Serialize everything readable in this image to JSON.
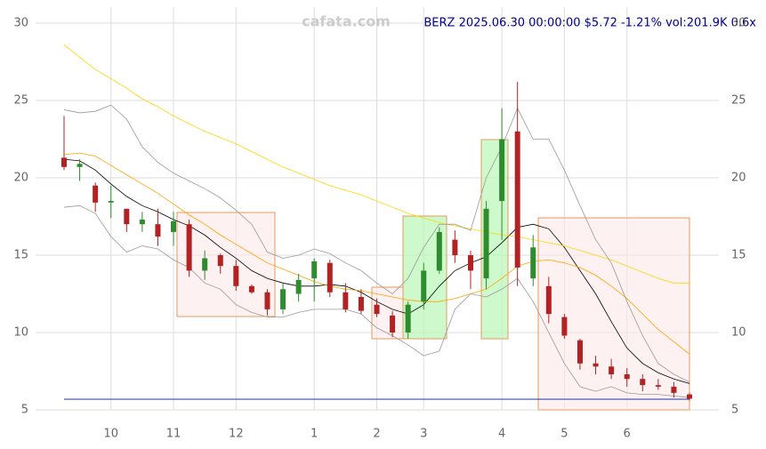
{
  "chart_data": {
    "type": "candlestick",
    "title": "BERZ 2025.06.30 00:00:00 $5.72 -1.21% vol:201.9K 0.6x",
    "watermark": "cafata.com",
    "categories": [
      null,
      null,
      null,
      "10",
      null,
      null,
      null,
      "11",
      null,
      null,
      null,
      "12",
      null,
      null,
      null,
      null,
      "1",
      null,
      null,
      null,
      "2",
      null,
      null,
      "3",
      null,
      null,
      null,
      null,
      "4",
      null,
      null,
      null,
      "5",
      null,
      null,
      null,
      "6",
      null,
      null,
      null,
      null
    ],
    "open": [
      21.3,
      20.7,
      19.5,
      18.4,
      18,
      17,
      17,
      16.5,
      17,
      14,
      15,
      14.3,
      13,
      12.6,
      11.5,
      12.5,
      13.5,
      14.5,
      12.6,
      12.3,
      11.8,
      11.1,
      10,
      12,
      14,
      16,
      15,
      13.5,
      18.5,
      23,
      13.5,
      13,
      11,
      9.5,
      8,
      7.8,
      7.3,
      7,
      6.6,
      6.5,
      6
    ],
    "high": [
      24,
      21.2,
      19.7,
      19.5,
      18,
      17.8,
      18,
      17.8,
      17.3,
      15.3,
      15.1,
      14.7,
      13.1,
      12.8,
      13.2,
      13.8,
      14.8,
      14.7,
      13.2,
      12.8,
      12.2,
      11.4,
      12,
      14.5,
      16.8,
      16.6,
      15.3,
      18.5,
      24.5,
      26.2,
      16.3,
      13.6,
      11.2,
      9.6,
      8.5,
      8.3,
      7.7,
      7.3,
      7,
      6.8,
      6.1
    ],
    "low": [
      20.5,
      19.8,
      17.8,
      17.4,
      16.5,
      16.5,
      15.6,
      15.6,
      13.6,
      13.4,
      13.8,
      12.7,
      12.5,
      11.1,
      11.2,
      12,
      12,
      12.3,
      11.3,
      11.2,
      11,
      9.7,
      9.6,
      11.5,
      13.8,
      14.5,
      12.8,
      12.8,
      16,
      13,
      13,
      10.6,
      9.6,
      7.6,
      7.3,
      7,
      6.5,
      6.2,
      6.3,
      5.8,
      5.6
    ],
    "close": [
      20.7,
      20.9,
      18.4,
      18.5,
      17,
      17.3,
      16.2,
      17.2,
      14,
      14.8,
      14.3,
      13,
      12.6,
      11.5,
      12.8,
      13.4,
      14.6,
      12.6,
      11.5,
      11.4,
      11.2,
      10,
      11.8,
      14,
      16.5,
      15,
      14,
      18,
      22.5,
      14.2,
      15.5,
      11.2,
      9.8,
      8,
      7.8,
      7.3,
      7,
      6.6,
      6.5,
      6.1,
      5.72
    ],
    "up_color": "#2e8b2e",
    "down_color": "#b22222",
    "lines": [
      {
        "color": "#000000",
        "values": [
          21.2,
          21.1,
          20.5,
          19.6,
          18.8,
          18.2,
          17.8,
          17.3,
          16.9,
          16.3,
          15.5,
          14.8,
          14,
          13.5,
          13.2,
          13,
          13,
          13.1,
          13,
          12.6,
          12,
          11.5,
          11.2,
          11.8,
          13,
          14,
          14.5,
          14.9,
          15.8,
          16.8,
          17,
          16.7,
          15.5,
          14,
          12.5,
          10.7,
          9,
          8,
          7.4,
          7,
          6.7
        ]
      },
      {
        "color": "#ffa500",
        "values": [
          21.5,
          21.6,
          21.4,
          20.8,
          20.2,
          19.6,
          19,
          18.3,
          17.6,
          17,
          16.3,
          15.7,
          15.1,
          14.5,
          14.1,
          13.7,
          13.3,
          13,
          12.8,
          12.7,
          12.5,
          12.3,
          12.1,
          12,
          12,
          12.2,
          12.5,
          12.8,
          13.5,
          14.3,
          14.6,
          14.7,
          14.5,
          14.2,
          13.7,
          13,
          12.2,
          11.2,
          10.2,
          9.4,
          8.6
        ]
      },
      {
        "color": "#ffd700",
        "values": [
          28.6,
          27.8,
          27,
          26.4,
          25.8,
          25.1,
          24.6,
          24,
          23.5,
          23,
          22.6,
          22.2,
          21.7,
          21.2,
          20.7,
          20.3,
          19.9,
          19.5,
          19.2,
          18.9,
          18.5,
          18.1,
          17.7,
          17.4,
          17.1,
          16.9,
          16.7,
          16.5,
          16.3,
          16.2,
          16,
          15.8,
          15.6,
          15.3,
          15,
          14.7,
          14.3,
          13.9,
          13.5,
          13.2,
          13.2
        ]
      },
      {
        "color": "#999999",
        "values": [
          24.4,
          24.2,
          24.3,
          24.7,
          23.8,
          22,
          21,
          20.3,
          19.8,
          19.3,
          18.7,
          17.9,
          17,
          15.2,
          14.8,
          15,
          15.4,
          15.1,
          14.5,
          14,
          13.2,
          12.5,
          13.5,
          15.5,
          17,
          17,
          16.6,
          20,
          22,
          24.5,
          22.5,
          22.5,
          20.5,
          18.2,
          16,
          14.5,
          12,
          9.8,
          8,
          7.3,
          6.8
        ]
      },
      {
        "color": "#999999",
        "values": [
          18.1,
          18.2,
          17.7,
          16.2,
          15.2,
          15.6,
          15.4,
          14.7,
          14.2,
          13.2,
          12.8,
          11.8,
          11.3,
          11,
          11,
          11.3,
          11.5,
          11.5,
          11.5,
          11.2,
          10.3,
          9.8,
          9.2,
          8.5,
          8.8,
          11.5,
          12.5,
          12.3,
          12.8,
          13.5,
          12,
          10,
          8,
          6.5,
          6.2,
          6.5,
          6.1,
          6,
          6,
          5.9,
          5.8
        ]
      }
    ],
    "ylim": [
      5,
      30
    ],
    "yticks": [
      5,
      10,
      15,
      20,
      25,
      30
    ],
    "grid": true
  }
}
